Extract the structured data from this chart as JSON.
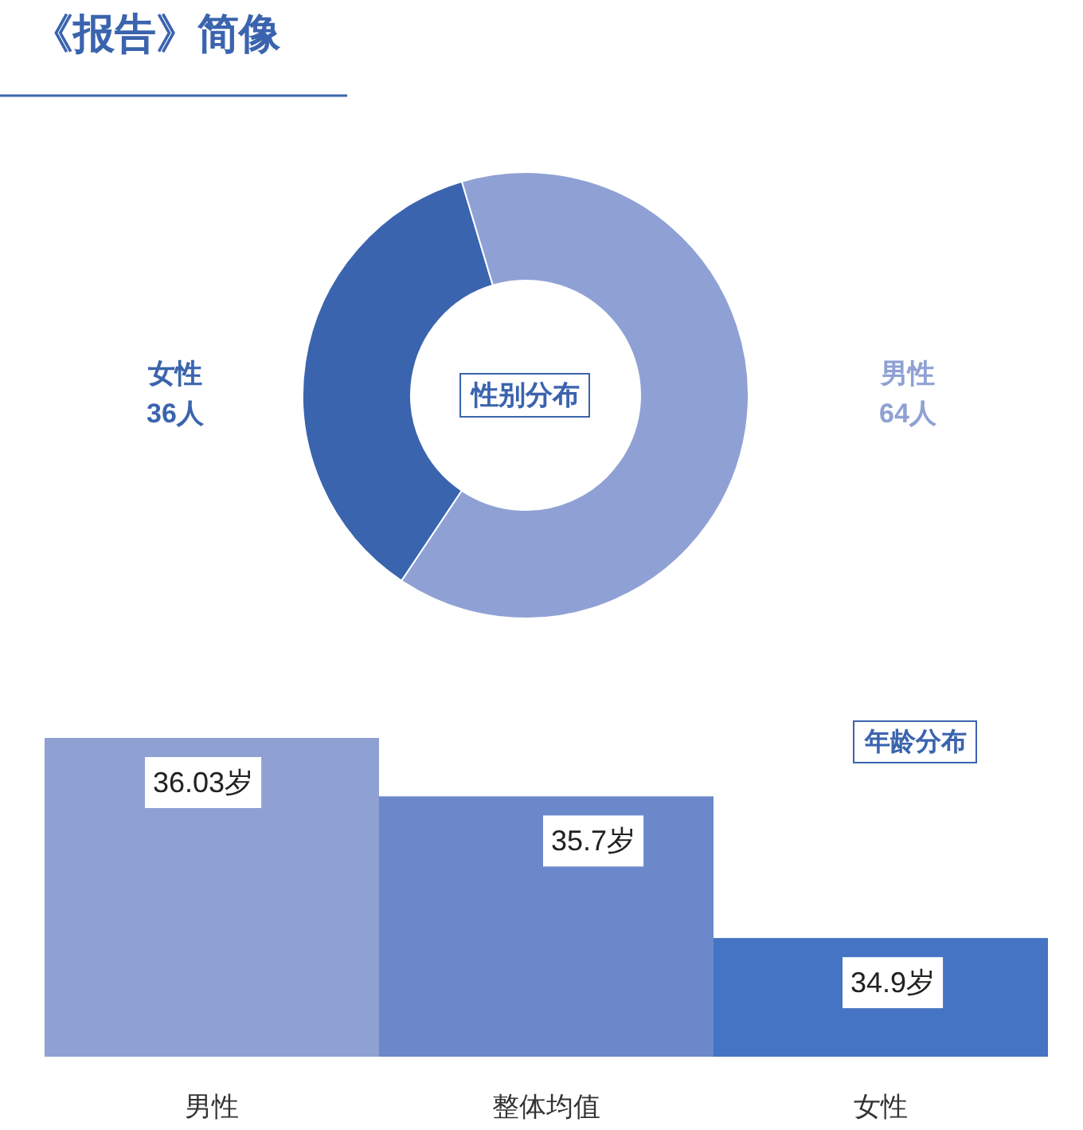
{
  "chart_data": [
    {
      "type": "donut",
      "title": "《报告》简像",
      "annotations": [
        "性别分布"
      ],
      "categories": [
        "女性",
        "男性"
      ],
      "values": [
        36,
        64
      ],
      "value_labels": [
        "36人",
        "64人"
      ],
      "colors": [
        "#3b64ae",
        "#8fa1d4"
      ]
    },
    {
      "type": "bar",
      "title": "年龄分布",
      "categories": [
        "男性",
        "整体均值",
        "女性"
      ],
      "values": [
        36.03,
        35.7,
        34.9
      ],
      "colors": [
        "#8fa0d3",
        "#6b88cb",
        "#4674c4"
      ],
      "value_labels": [
        "36.03岁",
        "35.7岁",
        "34.9岁"
      ],
      "ylim": [
        34.23,
        36.03
      ]
    }
  ]
}
